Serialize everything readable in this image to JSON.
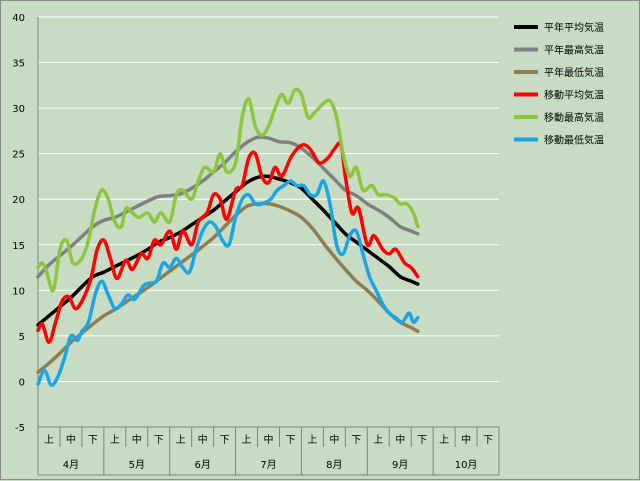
{
  "chart_data": {
    "type": "line",
    "ylim": [
      -5,
      40
    ],
    "yticks": [
      -5,
      0,
      5,
      10,
      15,
      20,
      25,
      30,
      35,
      40
    ],
    "month_labels": [
      "4月",
      "5月",
      "6月",
      "7月",
      "8月",
      "9月",
      "10月"
    ],
    "period_labels": [
      "上",
      "中",
      "下"
    ],
    "grid": true,
    "legend_position": "right",
    "x_domain": [
      0,
      21
    ],
    "series": [
      {
        "name": "平年平均気温",
        "color": "#000000",
        "points": [
          [
            0,
            6.2
          ],
          [
            0.5,
            7.2
          ],
          [
            1,
            8.2
          ],
          [
            1.5,
            9.2
          ],
          [
            2,
            10.4
          ],
          [
            2.5,
            11.5
          ],
          [
            3,
            12.0
          ],
          [
            3.5,
            12.6
          ],
          [
            4,
            13.2
          ],
          [
            4.5,
            13.8
          ],
          [
            5,
            14.5
          ],
          [
            5.5,
            15.3
          ],
          [
            6,
            15.8
          ],
          [
            6.5,
            16.4
          ],
          [
            7,
            17.2
          ],
          [
            7.5,
            18.0
          ],
          [
            8,
            18.8
          ],
          [
            8.5,
            19.8
          ],
          [
            9,
            20.8
          ],
          [
            9.5,
            21.8
          ],
          [
            10,
            22.4
          ],
          [
            10.5,
            22.5
          ],
          [
            11,
            22.2
          ],
          [
            11.5,
            21.8
          ],
          [
            12,
            21.2
          ],
          [
            12.5,
            20.0
          ],
          [
            13,
            18.8
          ],
          [
            13.5,
            17.5
          ],
          [
            14,
            16.2
          ],
          [
            14.5,
            15.3
          ],
          [
            15,
            14.4
          ],
          [
            15.5,
            13.5
          ],
          [
            16,
            12.6
          ],
          [
            16.5,
            11.5
          ],
          [
            17,
            11.0
          ],
          [
            17.3,
            10.7
          ]
        ]
      },
      {
        "name": "平年最高気温",
        "color": "#808080",
        "points": [
          [
            0,
            11.5
          ],
          [
            0.5,
            12.8
          ],
          [
            1,
            13.8
          ],
          [
            1.5,
            14.8
          ],
          [
            2,
            15.9
          ],
          [
            2.5,
            17.0
          ],
          [
            3,
            17.7
          ],
          [
            3.5,
            18.0
          ],
          [
            4,
            18.6
          ],
          [
            4.5,
            19.2
          ],
          [
            5,
            19.8
          ],
          [
            5.5,
            20.3
          ],
          [
            6,
            20.4
          ],
          [
            6.5,
            20.6
          ],
          [
            7,
            21.2
          ],
          [
            7.5,
            22.0
          ],
          [
            8,
            23.0
          ],
          [
            8.5,
            24.0
          ],
          [
            9,
            25.2
          ],
          [
            9.5,
            26.2
          ],
          [
            10,
            26.8
          ],
          [
            10.5,
            26.7
          ],
          [
            11,
            26.3
          ],
          [
            11.5,
            26.2
          ],
          [
            12,
            25.6
          ],
          [
            12.5,
            24.6
          ],
          [
            13,
            23.4
          ],
          [
            13.5,
            22.2
          ],
          [
            14,
            21.0
          ],
          [
            14.5,
            20.4
          ],
          [
            15,
            19.5
          ],
          [
            15.5,
            18.8
          ],
          [
            16,
            18.0
          ],
          [
            16.5,
            17.0
          ],
          [
            17,
            16.5
          ],
          [
            17.3,
            16.2
          ]
        ]
      },
      {
        "name": "平年最低気温",
        "color": "#8c7e52",
        "points": [
          [
            0,
            1.0
          ],
          [
            0.5,
            2.0
          ],
          [
            1,
            3.1
          ],
          [
            1.5,
            4.3
          ],
          [
            2,
            5.3
          ],
          [
            2.5,
            6.3
          ],
          [
            3,
            7.2
          ],
          [
            3.5,
            7.9
          ],
          [
            4,
            8.7
          ],
          [
            4.5,
            9.5
          ],
          [
            5,
            10.3
          ],
          [
            5.5,
            11.2
          ],
          [
            6,
            12.1
          ],
          [
            6.5,
            13.0
          ],
          [
            7,
            13.9
          ],
          [
            7.5,
            14.8
          ],
          [
            8,
            15.8
          ],
          [
            8.5,
            17.0
          ],
          [
            9,
            18.2
          ],
          [
            9.5,
            19.2
          ],
          [
            10,
            19.5
          ],
          [
            10.5,
            19.5
          ],
          [
            11,
            19.2
          ],
          [
            11.5,
            18.7
          ],
          [
            12,
            18.0
          ],
          [
            12.5,
            16.8
          ],
          [
            13,
            15.2
          ],
          [
            13.5,
            13.7
          ],
          [
            14,
            12.3
          ],
          [
            14.5,
            11.0
          ],
          [
            15,
            10.0
          ],
          [
            15.5,
            8.8
          ],
          [
            16,
            7.5
          ],
          [
            16.5,
            6.5
          ],
          [
            17,
            5.9
          ],
          [
            17.3,
            5.5
          ]
        ]
      },
      {
        "name": "移動平均気温",
        "color": "#ff0000",
        "points": [
          [
            0,
            5.6
          ],
          [
            0.2,
            6.3
          ],
          [
            0.5,
            4.3
          ],
          [
            0.8,
            6.5
          ],
          [
            1.1,
            8.8
          ],
          [
            1.4,
            9.3
          ],
          [
            1.7,
            8.0
          ],
          [
            2,
            8.8
          ],
          [
            2.4,
            11.2
          ],
          [
            2.7,
            14.5
          ],
          [
            3,
            15.5
          ],
          [
            3.3,
            13.5
          ],
          [
            3.6,
            11.3
          ],
          [
            4,
            13.3
          ],
          [
            4.3,
            12.3
          ],
          [
            4.7,
            14.0
          ],
          [
            5,
            13.5
          ],
          [
            5.3,
            15.5
          ],
          [
            5.6,
            15.0
          ],
          [
            6,
            16.5
          ],
          [
            6.3,
            14.5
          ],
          [
            6.6,
            16.5
          ],
          [
            7,
            15.0
          ],
          [
            7.3,
            17.5
          ],
          [
            7.7,
            18.5
          ],
          [
            8,
            20.5
          ],
          [
            8.3,
            20.0
          ],
          [
            8.6,
            17.8
          ],
          [
            9,
            21.0
          ],
          [
            9.3,
            21.5
          ],
          [
            9.6,
            24.5
          ],
          [
            9.9,
            25.0
          ],
          [
            10.2,
            22.5
          ],
          [
            10.5,
            21.8
          ],
          [
            10.8,
            23.5
          ],
          [
            11.1,
            22.5
          ],
          [
            11.5,
            24.5
          ],
          [
            11.8,
            25.5
          ],
          [
            12.1,
            26.0
          ],
          [
            12.4,
            25.5
          ],
          [
            12.8,
            24.0
          ],
          [
            13.2,
            24.5
          ],
          [
            13.5,
            25.5
          ],
          [
            13.8,
            26.0
          ],
          [
            14,
            22.5
          ],
          [
            14.3,
            18.5
          ],
          [
            14.6,
            19.0
          ],
          [
            15,
            15.0
          ],
          [
            15.3,
            16.0
          ],
          [
            15.7,
            14.5
          ],
          [
            16,
            14.0
          ],
          [
            16.3,
            14.5
          ],
          [
            16.7,
            13.0
          ],
          [
            17,
            12.5
          ],
          [
            17.3,
            11.5
          ]
        ]
      },
      {
        "name": "移動最高気温",
        "color": "#8cc63f",
        "points": [
          [
            0,
            12.5
          ],
          [
            0.2,
            13.0
          ],
          [
            0.4,
            12.0
          ],
          [
            0.7,
            10.0
          ],
          [
            1,
            14.5
          ],
          [
            1.3,
            15.5
          ],
          [
            1.6,
            13.0
          ],
          [
            2,
            13.5
          ],
          [
            2.3,
            15.5
          ],
          [
            2.6,
            19.0
          ],
          [
            2.9,
            21.0
          ],
          [
            3.2,
            20.0
          ],
          [
            3.5,
            17.5
          ],
          [
            3.8,
            17.0
          ],
          [
            4,
            19.0
          ],
          [
            4.3,
            18.5
          ],
          [
            4.6,
            18.0
          ],
          [
            5,
            18.5
          ],
          [
            5.3,
            17.5
          ],
          [
            5.6,
            18.5
          ],
          [
            6,
            17.5
          ],
          [
            6.3,
            20.5
          ],
          [
            6.6,
            21.0
          ],
          [
            7,
            20.0
          ],
          [
            7.3,
            22.0
          ],
          [
            7.6,
            23.5
          ],
          [
            8,
            23.0
          ],
          [
            8.3,
            25.0
          ],
          [
            8.6,
            23.0
          ],
          [
            9,
            24.0
          ],
          [
            9.3,
            29.0
          ],
          [
            9.6,
            31.0
          ],
          [
            9.9,
            28.0
          ],
          [
            10.2,
            27.0
          ],
          [
            10.5,
            28.0
          ],
          [
            10.8,
            30.0
          ],
          [
            11.1,
            31.5
          ],
          [
            11.4,
            30.5
          ],
          [
            11.7,
            32.0
          ],
          [
            12,
            31.5
          ],
          [
            12.3,
            29.0
          ],
          [
            12.6,
            29.5
          ],
          [
            13,
            30.5
          ],
          [
            13.3,
            30.8
          ],
          [
            13.6,
            29.0
          ],
          [
            13.9,
            25.0
          ],
          [
            14.2,
            22.5
          ],
          [
            14.5,
            23.5
          ],
          [
            14.8,
            21.0
          ],
          [
            15.2,
            21.5
          ],
          [
            15.5,
            20.5
          ],
          [
            15.8,
            20.5
          ],
          [
            16.2,
            20.2
          ],
          [
            16.5,
            19.5
          ],
          [
            16.8,
            19.5
          ],
          [
            17.1,
            18.5
          ],
          [
            17.3,
            17.0
          ]
        ]
      },
      {
        "name": "移動最低気温",
        "color": "#1aa6e6",
        "points": [
          [
            0,
            -0.3
          ],
          [
            0.3,
            1.2
          ],
          [
            0.6,
            -0.4
          ],
          [
            0.9,
            0.5
          ],
          [
            1.2,
            2.5
          ],
          [
            1.5,
            5.0
          ],
          [
            1.8,
            4.5
          ],
          [
            2,
            5.5
          ],
          [
            2.3,
            6.5
          ],
          [
            2.6,
            9.5
          ],
          [
            2.9,
            11.0
          ],
          [
            3.2,
            9.5
          ],
          [
            3.5,
            8.0
          ],
          [
            3.8,
            8.5
          ],
          [
            4.1,
            9.5
          ],
          [
            4.4,
            9.0
          ],
          [
            4.8,
            10.5
          ],
          [
            5.1,
            10.8
          ],
          [
            5.4,
            11.0
          ],
          [
            5.7,
            13.0
          ],
          [
            6,
            12.5
          ],
          [
            6.3,
            13.5
          ],
          [
            6.6,
            12.5
          ],
          [
            6.9,
            12.0
          ],
          [
            7.2,
            14.5
          ],
          [
            7.5,
            16.5
          ],
          [
            7.8,
            17.5
          ],
          [
            8.1,
            17.0
          ],
          [
            8.4,
            15.5
          ],
          [
            8.7,
            15.0
          ],
          [
            9,
            18.0
          ],
          [
            9.3,
            20.0
          ],
          [
            9.6,
            20.5
          ],
          [
            9.9,
            19.5
          ],
          [
            10.2,
            19.5
          ],
          [
            10.6,
            20.0
          ],
          [
            10.9,
            21.0
          ],
          [
            11.2,
            21.5
          ],
          [
            11.5,
            22.0
          ],
          [
            11.8,
            21.5
          ],
          [
            12.1,
            21.5
          ],
          [
            12.4,
            20.5
          ],
          [
            12.7,
            20.5
          ],
          [
            13,
            22.0
          ],
          [
            13.3,
            19.5
          ],
          [
            13.6,
            15.0
          ],
          [
            13.9,
            14.0
          ],
          [
            14.2,
            16.0
          ],
          [
            14.5,
            16.5
          ],
          [
            14.8,
            14.0
          ],
          [
            15.1,
            11.5
          ],
          [
            15.4,
            10.0
          ],
          [
            15.7,
            8.5
          ],
          [
            16,
            7.5
          ],
          [
            16.3,
            7.0
          ],
          [
            16.6,
            6.5
          ],
          [
            16.9,
            7.5
          ],
          [
            17.1,
            6.5
          ],
          [
            17.3,
            7.0
          ]
        ]
      }
    ]
  }
}
